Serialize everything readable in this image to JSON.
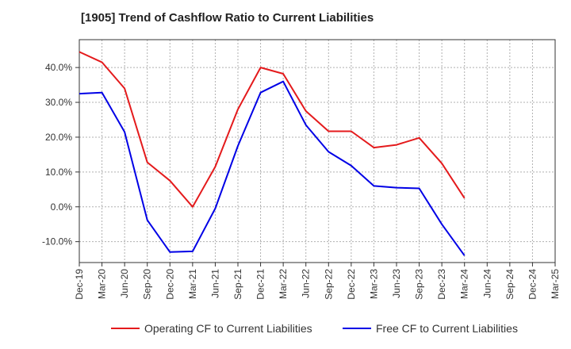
{
  "chart_data": {
    "type": "line",
    "title": "[1905]  Trend of Cashflow Ratio to Current Liabilities",
    "xlabel": "",
    "ylabel": "",
    "x": [
      "Dec-19",
      "Mar-20",
      "Jun-20",
      "Sep-20",
      "Dec-20",
      "Mar-21",
      "Jun-21",
      "Sep-21",
      "Dec-21",
      "Mar-22",
      "Jun-22",
      "Sep-22",
      "Dec-22",
      "Mar-23",
      "Jun-23",
      "Sep-23",
      "Dec-23",
      "Mar-24"
    ],
    "x_ticks": [
      "Dec-19",
      "Mar-20",
      "Jun-20",
      "Sep-20",
      "Dec-20",
      "Mar-21",
      "Jun-21",
      "Sep-21",
      "Dec-21",
      "Mar-22",
      "Jun-22",
      "Sep-22",
      "Dec-22",
      "Mar-23",
      "Jun-23",
      "Sep-23",
      "Dec-23",
      "Mar-24",
      "Jun-24",
      "Sep-24",
      "Dec-24",
      "Mar-25"
    ],
    "y_ticks": [
      -10,
      0,
      10,
      20,
      30,
      40
    ],
    "y_tick_labels": [
      "-10.0%",
      "0.0%",
      "10.0%",
      "20.0%",
      "30.0%",
      "40.0%"
    ],
    "ylim": [
      -16,
      48
    ],
    "grid": true,
    "legend_position": "bottom",
    "series": [
      {
        "name": "Operating CF to Current Liabilities",
        "color": "#e41a1c",
        "values": [
          44.5,
          41.5,
          34.0,
          12.8,
          7.5,
          0.0,
          11.5,
          28.0,
          40.0,
          38.2,
          27.5,
          21.7,
          21.7,
          17.0,
          17.8,
          19.8,
          12.5,
          2.5
        ]
      },
      {
        "name": "Free CF to Current Liabilities",
        "color": "#0000e6",
        "values": [
          32.5,
          32.8,
          21.5,
          -3.8,
          -13.0,
          -12.8,
          -0.5,
          17.5,
          32.8,
          36.0,
          23.5,
          15.8,
          11.8,
          6.0,
          5.5,
          5.3,
          -5.0,
          -14.0
        ]
      }
    ]
  }
}
